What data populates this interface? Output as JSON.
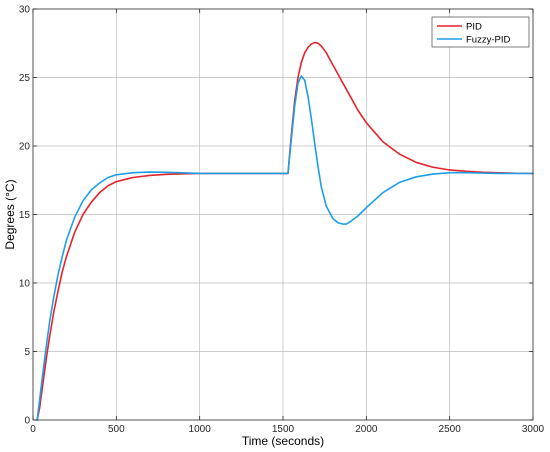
{
  "chart_data": {
    "type": "line",
    "xlabel": "Time (seconds)",
    "ylabel": "Degrees (°C)",
    "xlim": [
      0,
      3000
    ],
    "ylim": [
      0,
      30
    ],
    "xticks": [
      0,
      500,
      1000,
      1500,
      2000,
      2500,
      3000
    ],
    "yticks": [
      0,
      5,
      10,
      15,
      20,
      25,
      30
    ],
    "grid": true,
    "legend_position": "top-right",
    "series": [
      {
        "name": "PID",
        "color": "#e3242b",
        "x": [
          25,
          40,
          60,
          80,
          100,
          125,
          150,
          175,
          200,
          250,
          300,
          350,
          400,
          450,
          500,
          600,
          700,
          800,
          900,
          1000,
          1200,
          1400,
          1530,
          1550,
          1570,
          1590,
          1610,
          1630,
          1650,
          1670,
          1690,
          1710,
          1730,
          1760,
          1800,
          1850,
          1900,
          1950,
          2000,
          2100,
          2200,
          2300,
          2400,
          2500,
          2600,
          2700,
          2800,
          2900,
          3000
        ],
        "y": [
          0,
          0.9,
          2.7,
          4.5,
          6.1,
          7.9,
          9.4,
          10.8,
          11.9,
          13.7,
          15.0,
          15.9,
          16.6,
          17.1,
          17.4,
          17.7,
          17.85,
          17.93,
          17.97,
          18.0,
          18.0,
          18.0,
          18.0,
          20.8,
          23.3,
          25.0,
          26.1,
          26.8,
          27.2,
          27.45,
          27.55,
          27.5,
          27.3,
          26.8,
          25.9,
          24.8,
          23.7,
          22.6,
          21.7,
          20.3,
          19.4,
          18.8,
          18.45,
          18.25,
          18.15,
          18.08,
          18.04,
          18.01,
          18.0
        ]
      },
      {
        "name": "Fuzzy-PID",
        "color": "#1e9ee8",
        "x": [
          25,
          40,
          60,
          80,
          100,
          125,
          150,
          175,
          200,
          250,
          300,
          350,
          400,
          450,
          500,
          600,
          700,
          800,
          900,
          1000,
          1200,
          1400,
          1530,
          1550,
          1570,
          1590,
          1610,
          1630,
          1650,
          1670,
          1690,
          1710,
          1730,
          1760,
          1800,
          1830,
          1860,
          1880,
          1900,
          1950,
          2000,
          2100,
          2200,
          2300,
          2400,
          2500,
          2600,
          2700,
          2800,
          2900,
          3000
        ],
        "y": [
          0,
          1.5,
          3.5,
          5.4,
          7.2,
          9.0,
          10.6,
          11.9,
          13.1,
          14.8,
          16.0,
          16.8,
          17.3,
          17.7,
          17.9,
          18.05,
          18.1,
          18.08,
          18.04,
          18.0,
          18.0,
          18.0,
          18.0,
          20.5,
          22.9,
          24.6,
          25.1,
          24.8,
          23.6,
          22.0,
          20.2,
          18.5,
          17.0,
          15.6,
          14.7,
          14.4,
          14.3,
          14.3,
          14.45,
          14.9,
          15.5,
          16.6,
          17.35,
          17.75,
          17.95,
          18.05,
          18.05,
          18.02,
          18.0,
          18.0,
          18.0
        ]
      }
    ]
  }
}
